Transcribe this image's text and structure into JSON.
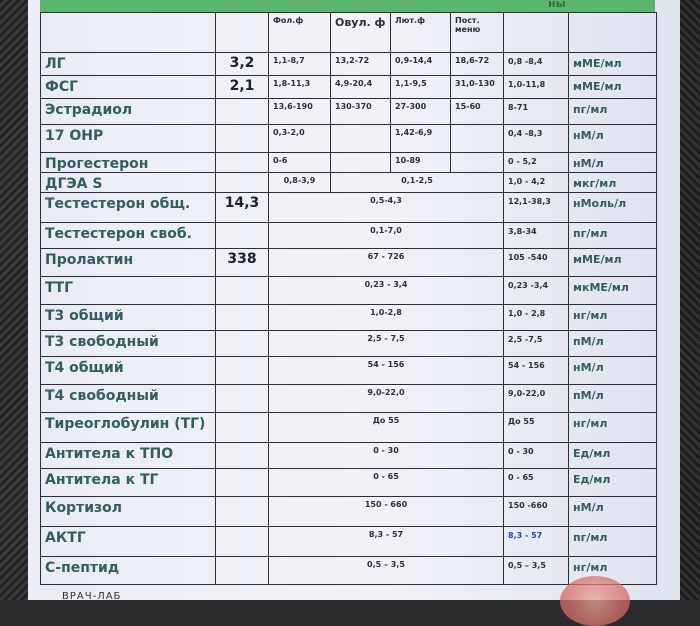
{
  "header": {
    "partial_title": "ны",
    "phases": [
      "Фол.ф",
      "Овул. ф",
      "Лют.ф",
      "Пост. меню"
    ]
  },
  "rows": [
    {
      "name": "ЛГ",
      "result": "3,2",
      "phases": [
        "1,1-8,7",
        "13,2-72",
        "0,9-14,4",
        "18,6-72"
      ],
      "male": "0,8 -8,4",
      "unit": "мМЕ/мл"
    },
    {
      "name": "ФСГ",
      "result": "2,1",
      "phases": [
        "1,8-11,3",
        "4,9-20,4",
        "1,1-9,5",
        "31,0-130"
      ],
      "male": "1,0-11,8",
      "unit": "мМЕ/мл"
    },
    {
      "name": "Эстрадиол",
      "result": "",
      "phases": [
        "13,6-190",
        "130-370",
        "27-300",
        "15-60"
      ],
      "male": "8-71",
      "unit": "пг/мл"
    },
    {
      "name": "17 ОНР",
      "result": "",
      "phases": [
        "0,3-2,0",
        "",
        "1,42-6,9",
        ""
      ],
      "male": "0,4 -8,3",
      "unit": "нМ/л"
    },
    {
      "name": "Прогестерон",
      "result": "",
      "phases": [
        "0-6",
        "",
        "10-89",
        ""
      ],
      "male": "0 - 5,2",
      "unit": "нМ/л"
    },
    {
      "name": "ДГЭА S",
      "result": "",
      "split": [
        "0,8-3,9",
        "0,1-2,5"
      ],
      "male": "1,0 - 4,2",
      "unit": "мкг/мл"
    },
    {
      "name": "Тестестерон общ.",
      "result": "14,3",
      "range": "0,5-4,3",
      "male": "12,1-38,3",
      "unit": "нМоль/л"
    },
    {
      "name": "Тестестерон своб.",
      "result": "",
      "range": "0,1-7,0",
      "male": "3,8-34",
      "unit": "пг/мл"
    },
    {
      "name": "Пролактин",
      "result": "338",
      "range": "67 - 726",
      "male": "105 -540",
      "unit": "мМЕ/мл"
    },
    {
      "name": "ТТГ",
      "result": "",
      "range": "0,23 - 3,4",
      "male": "0,23 -3,4",
      "unit": "мкМЕ/мл"
    },
    {
      "name": "Т3 общий",
      "result": "",
      "range": "1,0-2,8",
      "male": "1,0 - 2,8",
      "unit": "нг/мл"
    },
    {
      "name": "Т3 свободный",
      "result": "",
      "range": "2,5 - 7,5",
      "male": "2,5 -7,5",
      "unit": "пМ/л"
    },
    {
      "name": "Т4 общий",
      "result": "",
      "range": "54 - 156",
      "male": "54 - 156",
      "unit": "нМ/л"
    },
    {
      "name": "Т4 свободный",
      "result": "",
      "range": "9,0-22,0",
      "male": "9,0-22,0",
      "unit": "пМ/л"
    },
    {
      "name": "Тиреоглобулин (ТГ)",
      "result": "",
      "range": "До 55",
      "male": "До 55",
      "unit": "нг/мл"
    },
    {
      "name": "Антитела к ТПО",
      "result": "",
      "range": "0 - 30",
      "male": "0 - 30",
      "unit": "Ед/мл"
    },
    {
      "name": "Антитела к ТГ",
      "result": "",
      "range": "0 - 65",
      "male": "0 - 65",
      "unit": "Ед/мл"
    },
    {
      "name": "Кортизол",
      "result": "",
      "range": "150 - 660",
      "male": "150 -660",
      "unit": "нМ/л"
    },
    {
      "name": "АКТГ",
      "result": "",
      "range": "8,3 - 57",
      "male": "8,3 - 57",
      "unit": "пг/мл"
    },
    {
      "name": "С-пептид",
      "result": "",
      "range": "0,5 – 3,5",
      "male": "0,5 – 3,5",
      "unit": "нг/мл"
    }
  ],
  "footer": {
    "text": "ВРАЧ-ЛАБ"
  },
  "colors": {
    "header_green": "#5bb56d",
    "name_text": "#2f5f60",
    "stamp": "#d9736a",
    "akth_male_blue": "#2747a8"
  }
}
